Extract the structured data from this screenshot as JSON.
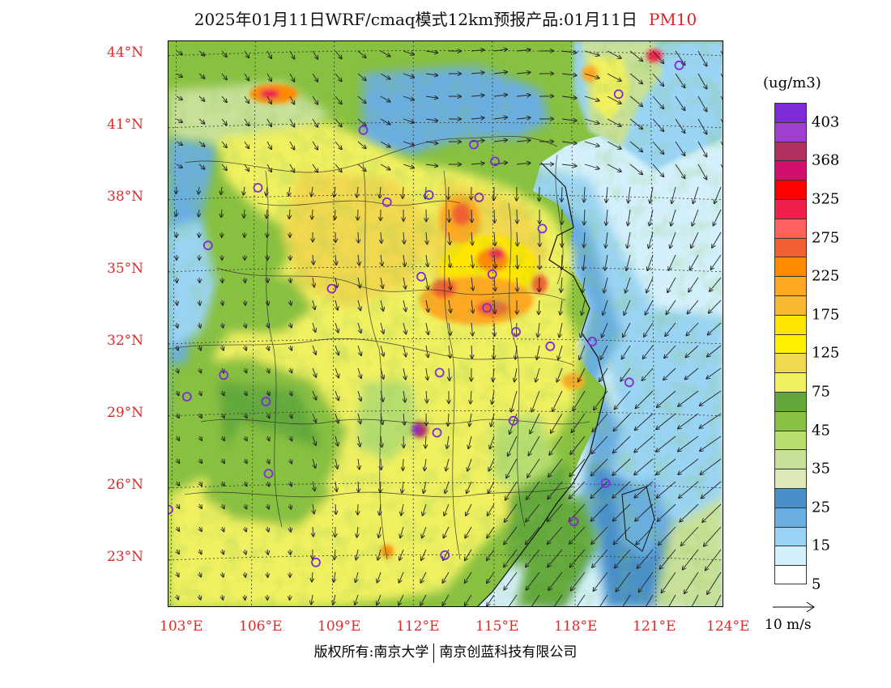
{
  "title": {
    "text": "2025年01月11日WRF/cmaq模式12km预报产品:01月11日",
    "pollutant": "PM10"
  },
  "axes": {
    "lat_labels": [
      "44°N",
      "41°N",
      "38°N",
      "35°N",
      "32°N",
      "29°N",
      "26°N",
      "23°N"
    ],
    "lon_labels": [
      "103°E",
      "106°E",
      "109°E",
      "112°E",
      "115°E",
      "118°E",
      "121°E",
      "124°E"
    ]
  },
  "colorbar": {
    "unit": "(ug/m3)",
    "ticks": [
      "403",
      "368",
      "325",
      "275",
      "225",
      "175",
      "125",
      "75",
      "45",
      "35",
      "25",
      "15",
      "5"
    ],
    "colors": [
      "#7f2cd8",
      "#9f3fcf",
      "#b03060",
      "#d0106a",
      "#ff0000",
      "#f0204a",
      "#ff6060",
      "#f06030",
      "#ff8a00",
      "#ffa820",
      "#f8b830",
      "#ffe600",
      "#fff200",
      "#f0d850",
      "#f0f060",
      "#64a83c",
      "#88c040",
      "#b8de70",
      "#c8e098",
      "#dceab8",
      "#4a90c8",
      "#6aaee0",
      "#9ad4f4",
      "#d4f0fc",
      "#ffffff"
    ]
  },
  "vector_key": {
    "label": "10 m/s"
  },
  "footer": {
    "left": "版权所有:南京大学",
    "right": "南京创蓝科技有限公司"
  },
  "stations": [
    {
      "lon": 103.4,
      "lat": 29.7
    },
    {
      "lon": 104.8,
      "lat": 30.6
    },
    {
      "lon": 104.2,
      "lat": 36.0
    },
    {
      "lon": 106.1,
      "lat": 38.4
    },
    {
      "lon": 106.4,
      "lat": 29.5
    },
    {
      "lon": 106.5,
      "lat": 26.5
    },
    {
      "lon": 102.7,
      "lat": 25.0
    },
    {
      "lon": 108.3,
      "lat": 22.8
    },
    {
      "lon": 108.9,
      "lat": 34.2
    },
    {
      "lon": 110.1,
      "lat": 40.8
    },
    {
      "lon": 111.0,
      "lat": 37.8
    },
    {
      "lon": 112.6,
      "lat": 38.1
    },
    {
      "lon": 112.3,
      "lat": 34.7
    },
    {
      "lon": 113.0,
      "lat": 30.7
    },
    {
      "lon": 112.9,
      "lat": 28.2
    },
    {
      "lon": 113.2,
      "lat": 23.1
    },
    {
      "lon": 114.5,
      "lat": 38.0
    },
    {
      "lon": 114.3,
      "lat": 40.2
    },
    {
      "lon": 115.1,
      "lat": 39.5
    },
    {
      "lon": 116.9,
      "lat": 36.7
    },
    {
      "lon": 115.0,
      "lat": 34.8
    },
    {
      "lon": 114.8,
      "lat": 33.4
    },
    {
      "lon": 115.9,
      "lat": 32.4
    },
    {
      "lon": 117.2,
      "lat": 31.8
    },
    {
      "lon": 118.8,
      "lat": 32.0
    },
    {
      "lon": 120.2,
      "lat": 30.3
    },
    {
      "lon": 115.8,
      "lat": 28.7
    },
    {
      "lon": 119.3,
      "lat": 26.1
    },
    {
      "lon": 118.1,
      "lat": 24.5
    },
    {
      "lon": 119.8,
      "lat": 42.3
    },
    {
      "lon": 122.1,
      "lat": 43.5
    }
  ]
}
